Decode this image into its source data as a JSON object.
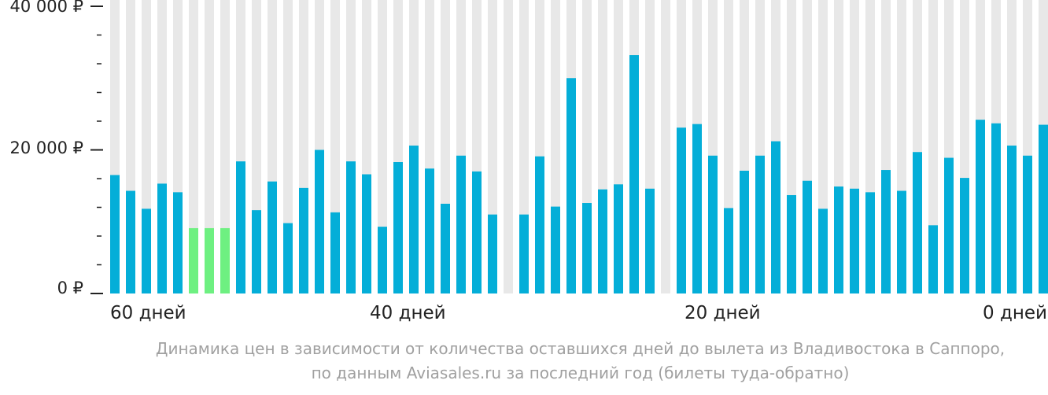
{
  "chart_data": {
    "type": "bar",
    "x_unit_labels": [
      "60 дней",
      "40 дней",
      "20 дней",
      "0 дней"
    ],
    "y_tick_labels": [
      "40 000 ₽",
      "20 000 ₽",
      "0 ₽"
    ],
    "ylim": [
      0,
      40000
    ],
    "values": [
      16500,
      14300,
      11800,
      15300,
      14100,
      9100,
      9100,
      9100,
      18400,
      11600,
      15600,
      9800,
      14700,
      20000,
      11300,
      18400,
      16600,
      9300,
      18300,
      20600,
      17400,
      12500,
      19200,
      17000,
      11000,
      null,
      11000,
      19100,
      12100,
      30000,
      12600,
      14500,
      15200,
      33200,
      14600,
      null,
      23100,
      23600,
      19200,
      11900,
      17100,
      19200,
      21200,
      13700,
      15700,
      11800,
      14900,
      14600,
      14100,
      17200,
      14300,
      19700,
      9500,
      18900,
      16100,
      24200,
      23700,
      20600,
      19200,
      23500
    ],
    "highlight_indices": [
      5,
      6,
      7
    ],
    "colors": {
      "bar": "#04aed8",
      "highlight": "#6ef081",
      "background_column": "#e8e8e8",
      "axis": "#222222"
    },
    "caption": [
      "Динамика цен в зависимости от количества оставшихся дней до вылета из Владивостока в Саппоро,",
      "по данным Aviasales.ru за последний год (билеты туда-обратно)"
    ]
  }
}
